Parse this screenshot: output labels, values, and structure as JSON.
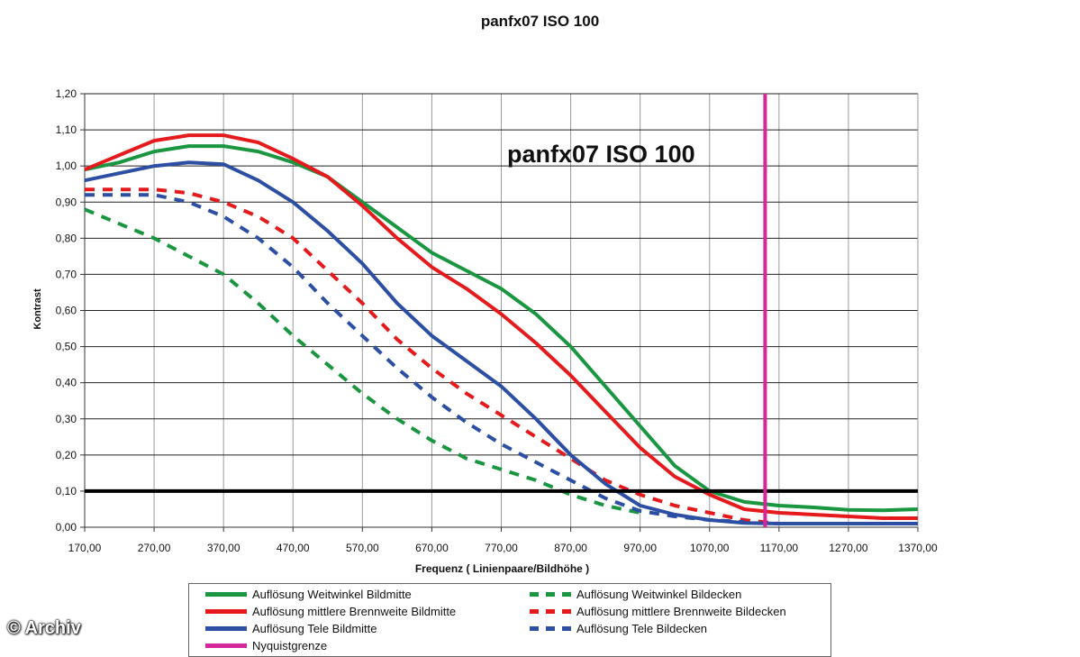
{
  "chart_data": {
    "type": "line",
    "title": "panfx07 ISO 100",
    "inner_title": "panfx07 ISO 100",
    "xlabel": "Frequenz ( Linienpaare/Bildhöhe )",
    "ylabel": "Kontrast",
    "xlim": [
      170,
      1370
    ],
    "ylim": [
      0,
      1.2
    ],
    "x_ticks": [
      "170,00",
      "270,00",
      "370,00",
      "470,00",
      "570,00",
      "670,00",
      "770,00",
      "870,00",
      "970,00",
      "1070,00",
      "1170,00",
      "1270,00",
      "1370,00"
    ],
    "y_ticks": [
      "0,00",
      "0,10",
      "0,20",
      "0,30",
      "0,40",
      "0,50",
      "0,60",
      "0,70",
      "0,80",
      "0,90",
      "1,00",
      "1,10",
      "1,20"
    ],
    "grid": true,
    "legend_position": "bottom",
    "threshold_line": 0.1,
    "nyquist_x": 1150,
    "series": [
      {
        "name": "Auflösung Weitwinkel Bildmitte",
        "color": "#1a9641",
        "style": "solid",
        "x": [
          170,
          220,
          270,
          320,
          370,
          420,
          470,
          520,
          570,
          620,
          670,
          720,
          770,
          820,
          870,
          920,
          970,
          1020,
          1070,
          1120,
          1170,
          1220,
          1270,
          1320,
          1370
        ],
        "y": [
          0.99,
          1.01,
          1.04,
          1.055,
          1.055,
          1.04,
          1.01,
          0.97,
          0.9,
          0.83,
          0.76,
          0.71,
          0.66,
          0.59,
          0.5,
          0.39,
          0.28,
          0.17,
          0.1,
          0.07,
          0.06,
          0.055,
          0.048,
          0.047,
          0.05
        ]
      },
      {
        "name": "Auflösung Weitwinkel Bildecken",
        "color": "#1a9641",
        "style": "dashed",
        "x": [
          170,
          220,
          270,
          320,
          370,
          420,
          470,
          520,
          570,
          620,
          670,
          720,
          770,
          820,
          870,
          920,
          970
        ],
        "y": [
          0.88,
          0.84,
          0.8,
          0.75,
          0.7,
          0.62,
          0.53,
          0.45,
          0.37,
          0.3,
          0.24,
          0.19,
          0.16,
          0.13,
          0.09,
          0.06,
          0.04
        ]
      },
      {
        "name": "Auflösung mittlere Brennweite Bildmitte",
        "color": "#e41a1c",
        "style": "solid",
        "x": [
          170,
          220,
          270,
          320,
          370,
          420,
          470,
          520,
          570,
          620,
          670,
          720,
          770,
          820,
          870,
          920,
          970,
          1020,
          1070,
          1120,
          1170,
          1220,
          1270,
          1320,
          1370
        ],
        "y": [
          0.99,
          1.03,
          1.07,
          1.085,
          1.085,
          1.065,
          1.02,
          0.97,
          0.89,
          0.8,
          0.72,
          0.66,
          0.59,
          0.51,
          0.42,
          0.32,
          0.22,
          0.14,
          0.09,
          0.05,
          0.04,
          0.035,
          0.03,
          0.025,
          0.025
        ]
      },
      {
        "name": "Auflösung mittlere Brennweite Bildecken",
        "color": "#e41a1c",
        "style": "dashed",
        "x": [
          170,
          220,
          270,
          320,
          370,
          420,
          470,
          520,
          570,
          620,
          670,
          720,
          770,
          820,
          870,
          920,
          970,
          1020,
          1070,
          1120,
          1170
        ],
        "y": [
          0.935,
          0.935,
          0.935,
          0.925,
          0.9,
          0.86,
          0.8,
          0.71,
          0.62,
          0.52,
          0.44,
          0.37,
          0.31,
          0.25,
          0.19,
          0.13,
          0.09,
          0.06,
          0.04,
          0.02,
          0.01
        ]
      },
      {
        "name": "Auflösung Tele Bildmitte",
        "color": "#2c4fa3",
        "style": "solid",
        "x": [
          170,
          220,
          270,
          320,
          370,
          420,
          470,
          520,
          570,
          620,
          670,
          720,
          770,
          820,
          870,
          920,
          970,
          1020,
          1070,
          1120,
          1170,
          1220,
          1270,
          1320,
          1370
        ],
        "y": [
          0.96,
          0.98,
          1.0,
          1.01,
          1.005,
          0.96,
          0.9,
          0.82,
          0.73,
          0.62,
          0.53,
          0.46,
          0.39,
          0.3,
          0.2,
          0.12,
          0.06,
          0.035,
          0.02,
          0.012,
          0.01,
          0.01,
          0.01,
          0.01,
          0.01
        ]
      },
      {
        "name": "Auflösung Tele Bildecken",
        "color": "#2c4fa3",
        "style": "dashed",
        "x": [
          170,
          220,
          270,
          320,
          370,
          420,
          470,
          520,
          570,
          620,
          670,
          720,
          770,
          820,
          870,
          920,
          970,
          1020,
          1070,
          1120
        ],
        "y": [
          0.92,
          0.92,
          0.92,
          0.9,
          0.86,
          0.8,
          0.72,
          0.62,
          0.53,
          0.44,
          0.36,
          0.29,
          0.23,
          0.18,
          0.13,
          0.08,
          0.045,
          0.03,
          0.02,
          0.015
        ]
      },
      {
        "name": "Nyquistgrenze",
        "color": "#d6279a",
        "style": "solid",
        "x": [],
        "y": []
      }
    ]
  },
  "watermark": "© Archiv"
}
